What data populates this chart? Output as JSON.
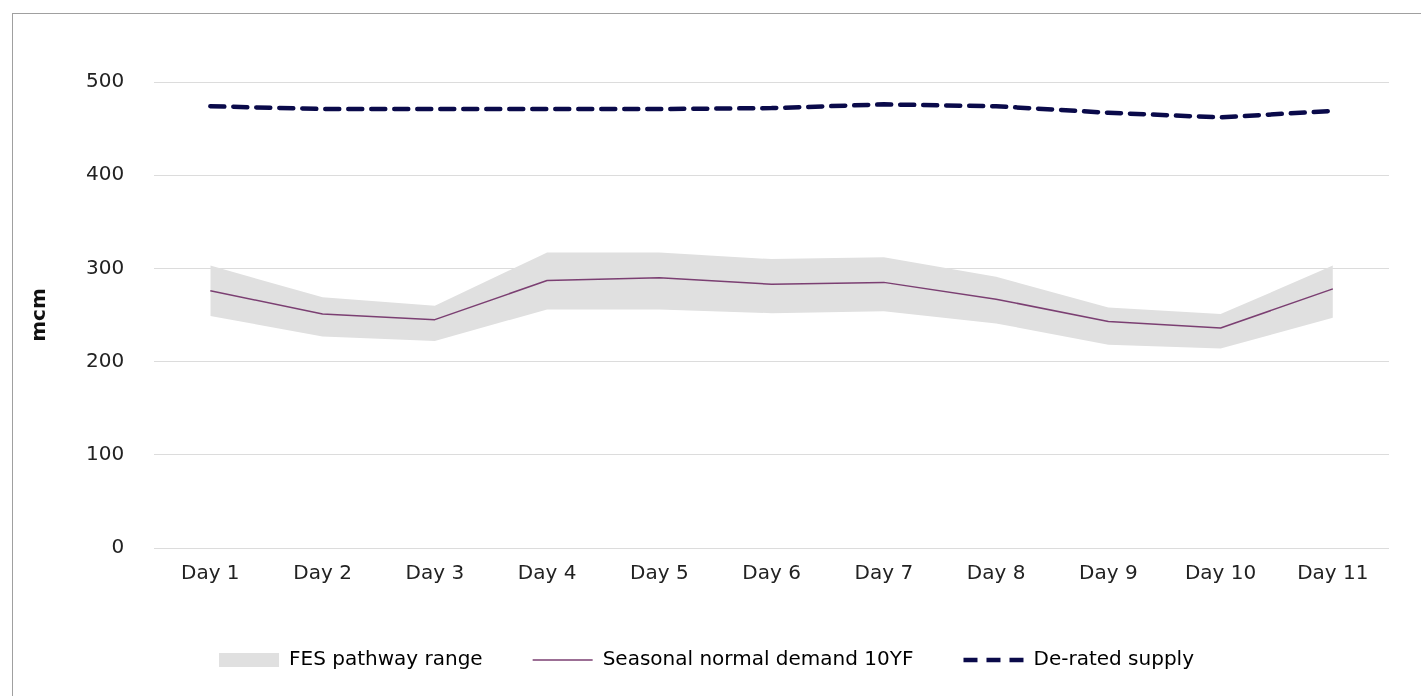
{
  "chart_data": {
    "type": "line",
    "ylabel": "mcm",
    "categories": [
      "Day 1",
      "Day 2",
      "Day 3",
      "Day 4",
      "Day 5",
      "Day 6",
      "Day 7",
      "Day 8",
      "Day 9",
      "Day 10",
      "Day 11"
    ],
    "ylim": [
      0,
      500
    ],
    "yticks": [
      0,
      100,
      200,
      300,
      400,
      500
    ],
    "grid": "y",
    "legend": "bottom",
    "marker": "none",
    "series": [
      {
        "name": "FES pathway range",
        "type": "area",
        "color": "#e0e0e0",
        "values": [
          null,
          null,
          null,
          null,
          null,
          null,
          null,
          null,
          null,
          null,
          null
        ],
        "lower": [
          249,
          227,
          222,
          256,
          256,
          252,
          254,
          241,
          218,
          214,
          247
        ],
        "upper": [
          303,
          269,
          260,
          317,
          317,
          310,
          312,
          291,
          258,
          251,
          303
        ]
      },
      {
        "name": "Seasonal normal demand 10YF",
        "type": "line",
        "color": "#7b3f72",
        "line_style": "solid",
        "values": [
          276,
          251,
          245,
          287,
          290,
          283,
          285,
          267,
          243,
          236,
          278
        ]
      },
      {
        "name": "De-rated supply",
        "type": "line",
        "color": "#0a0a4a",
        "line_style": "dashed",
        "values": [
          474,
          471,
          471,
          471,
          471,
          472,
          476,
          474,
          467,
          462,
          469
        ]
      }
    ]
  }
}
